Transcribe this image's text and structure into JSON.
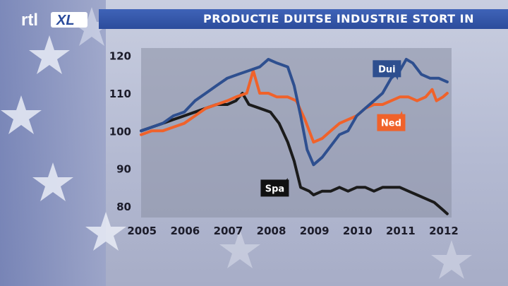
{
  "header": {
    "channel": "rtl",
    "channel_suffix": "XL",
    "title": "PRODUCTIE DUITSE INDUSTRIE STORT IN"
  },
  "colors": {
    "dui": "#2e4f8f",
    "ned": "#f0622a",
    "spa": "#1b1b1b",
    "title_bar": "#2f52a6"
  },
  "chart_data": {
    "type": "line",
    "title": "PRODUCTIE DUITSE INDUSTRIE STORT IN",
    "x_ticks": [
      "2005",
      "2006",
      "2007",
      "2008",
      "2009",
      "2010",
      "2011",
      "2012"
    ],
    "y_ticks": [
      80,
      90,
      100,
      110,
      120
    ],
    "xlim": [
      2005.0,
      2012.2
    ],
    "ylim": [
      77,
      122
    ],
    "grid": false,
    "series": [
      {
        "name": "Dui",
        "x": [
          2005.0,
          2005.25,
          2005.5,
          2005.75,
          2006.0,
          2006.25,
          2006.5,
          2006.75,
          2007.0,
          2007.25,
          2007.5,
          2007.75,
          2007.95,
          2008.15,
          2008.4,
          2008.55,
          2008.7,
          2008.85,
          2009.0,
          2009.2,
          2009.4,
          2009.6,
          2009.8,
          2010.0,
          2010.2,
          2010.4,
          2010.6,
          2010.8,
          2011.0,
          2011.15,
          2011.3,
          2011.5,
          2011.7,
          2011.9,
          2012.1
        ],
        "values": [
          100,
          101,
          102,
          104,
          105,
          108,
          110,
          112,
          114,
          115,
          116,
          117,
          119,
          118,
          117,
          112,
          104,
          95,
          91,
          93,
          96,
          99,
          100,
          104,
          106,
          108,
          110,
          114,
          116,
          119,
          118,
          115,
          114,
          114,
          113
        ]
      },
      {
        "name": "Ned",
        "x": [
          2005.0,
          2005.25,
          2005.5,
          2005.75,
          2006.0,
          2006.25,
          2006.5,
          2006.75,
          2007.0,
          2007.2,
          2007.45,
          2007.6,
          2007.75,
          2007.95,
          2008.15,
          2008.4,
          2008.6,
          2008.8,
          2009.0,
          2009.2,
          2009.4,
          2009.6,
          2009.8,
          2010.0,
          2010.2,
          2010.4,
          2010.6,
          2010.8,
          2011.0,
          2011.2,
          2011.4,
          2011.6,
          2011.75,
          2011.85,
          2012.0,
          2012.1
        ],
        "values": [
          99,
          100,
          100,
          101,
          102,
          104,
          106,
          107,
          108,
          109,
          110,
          116,
          110,
          110,
          109,
          109,
          108,
          103,
          97,
          98,
          100,
          102,
          103,
          104,
          106,
          107,
          107,
          108,
          109,
          109,
          108,
          109,
          111,
          108,
          109,
          110
        ]
      },
      {
        "name": "Spa",
        "x": [
          2005.0,
          2005.25,
          2005.5,
          2005.75,
          2006.0,
          2006.25,
          2006.5,
          2006.75,
          2007.0,
          2007.2,
          2007.35,
          2007.5,
          2007.75,
          2008.0,
          2008.2,
          2008.4,
          2008.55,
          2008.7,
          2008.9,
          2009.0,
          2009.2,
          2009.4,
          2009.6,
          2009.8,
          2010.0,
          2010.2,
          2010.4,
          2010.6,
          2010.8,
          2011.0,
          2011.2,
          2011.4,
          2011.6,
          2011.8,
          2012.0,
          2012.1
        ],
        "values": [
          100,
          101,
          102,
          103,
          104,
          105,
          106,
          107,
          107,
          108,
          110,
          107,
          106,
          105,
          102,
          97,
          92,
          85,
          84,
          83,
          84,
          84,
          85,
          84,
          85,
          85,
          84,
          85,
          85,
          85,
          84,
          83,
          82,
          81,
          79,
          78
        ]
      }
    ]
  }
}
